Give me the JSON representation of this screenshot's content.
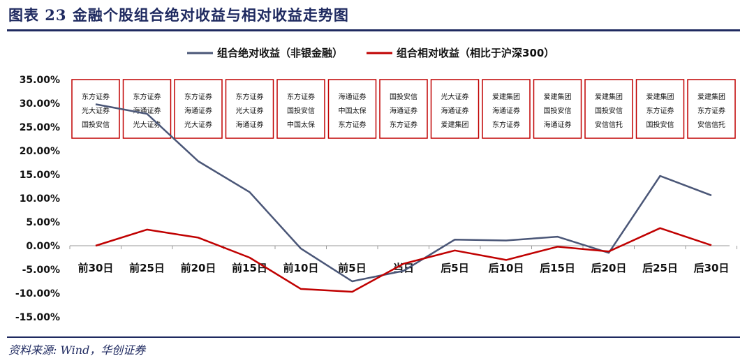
{
  "figure": {
    "title": "图表 23   金融个股组合绝对收益与相对收益走势图",
    "source": "资料来源: Wind，华创证券"
  },
  "colors": {
    "absolute": "#4a5677",
    "relative": "#c00000",
    "box_border": "#c00000",
    "rule": "#1f2a60"
  },
  "chart_data": {
    "type": "line",
    "categories": [
      "前30日",
      "前25日",
      "前20日",
      "前15日",
      "前10日",
      "前5日",
      "当日",
      "后5日",
      "后10日",
      "后15日",
      "后20日",
      "后25日",
      "后30日"
    ],
    "ylim": [
      -15,
      35
    ],
    "yticks": [
      35,
      30,
      25,
      20,
      15,
      10,
      5,
      0,
      -5,
      -10,
      -15
    ],
    "ytick_labels": [
      "35.00%",
      "30.00%",
      "25.00%",
      "20.00%",
      "15.00%",
      "10.00%",
      "5.00%",
      "0.00%",
      "-5.00%",
      "-10.00%",
      "-15.00%"
    ],
    "grid": false,
    "legend_position": "top-center",
    "series": [
      {
        "name": "组合绝对收益（非银金融）",
        "color_key": "absolute",
        "values": [
          29.8,
          27.8,
          17.8,
          11.3,
          -0.6,
          -7.5,
          -5.3,
          1.3,
          1.1,
          1.9,
          -1.5,
          14.7,
          10.6
        ]
      },
      {
        "name": "组合相对收益（相比于沪深300）",
        "color_key": "relative",
        "values": [
          0.0,
          3.4,
          1.7,
          -2.5,
          -9.1,
          -9.7,
          -3.8,
          -1.0,
          -3.0,
          -0.2,
          -1.2,
          3.7,
          0.1
        ]
      }
    ],
    "holdings": [
      [
        "东方证券",
        "光大证券",
        "国投安信"
      ],
      [
        "东方证券",
        "海通证券",
        "光大证券"
      ],
      [
        "东方证券",
        "海通证券",
        "光大证券"
      ],
      [
        "东方证券",
        "光大证券",
        "海通证券"
      ],
      [
        "东方证券",
        "国投安信",
        "中国太保"
      ],
      [
        "海通证券",
        "中国太保",
        "东方证券"
      ],
      [
        "国投安信",
        "海通证券",
        "东方证券"
      ],
      [
        "光大证券",
        "海通证券",
        "爱建集团"
      ],
      [
        "爱建集团",
        "海通证券",
        "东方证券"
      ],
      [
        "爱建集团",
        "国投安信",
        "海通证券"
      ],
      [
        "爱建集团",
        "国投安信",
        "安信信托"
      ],
      [
        "爱建集团",
        "东方证券",
        "国投安信"
      ],
      [
        "爱建集团",
        "东方证券",
        "安信信托"
      ]
    ]
  }
}
